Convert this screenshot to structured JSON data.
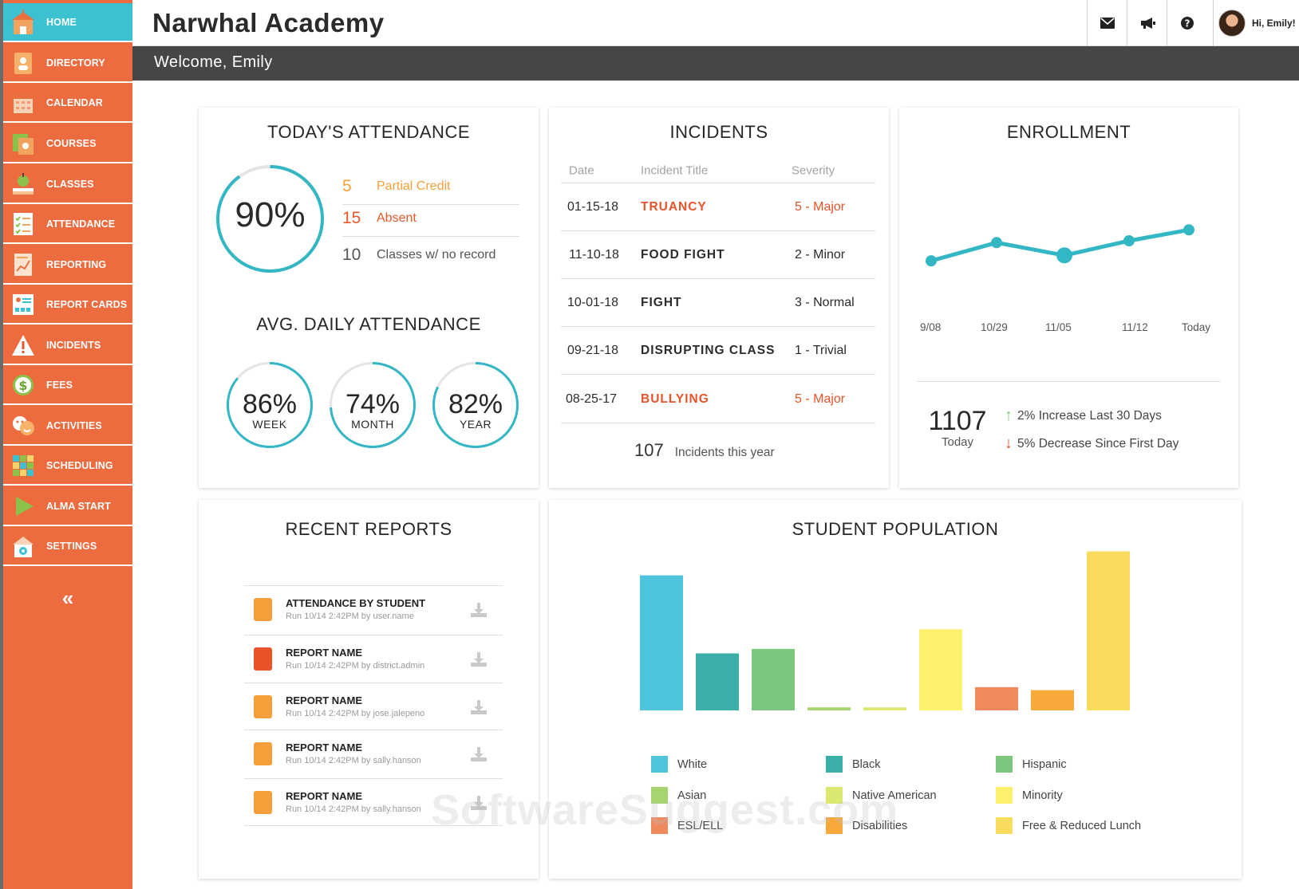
{
  "header": {
    "title": "Narwhal Academy",
    "greeting": "Hi, Emily!",
    "welcome": "Welcome, Emily",
    "icons": [
      "mail-icon",
      "megaphone-icon",
      "help-icon"
    ]
  },
  "sidebar": {
    "items": [
      {
        "label": "HOME",
        "icon": "school-house-icon",
        "active": true
      },
      {
        "label": "DIRECTORY",
        "icon": "directory-icon"
      },
      {
        "label": "CALENDAR",
        "icon": "calendar-icon"
      },
      {
        "label": "COURSES",
        "icon": "courses-icon"
      },
      {
        "label": "CLASSES",
        "icon": "apple-books-icon"
      },
      {
        "label": "ATTENDANCE",
        "icon": "checklist-icon"
      },
      {
        "label": "REPORTING",
        "icon": "report-chart-icon"
      },
      {
        "label": "REPORT CARDS",
        "icon": "report-card-icon"
      },
      {
        "label": "INCIDENTS",
        "icon": "warning-icon"
      },
      {
        "label": "FEES",
        "icon": "dollar-icon"
      },
      {
        "label": "ACTIVITIES",
        "icon": "theater-masks-icon"
      },
      {
        "label": "SCHEDULING",
        "icon": "schedule-grid-icon"
      },
      {
        "label": "ALMA START",
        "icon": "play-icon"
      },
      {
        "label": "SETTINGS",
        "icon": "settings-house-icon"
      }
    ],
    "collapse": "«"
  },
  "attendance": {
    "title": "TODAY'S ATTENDANCE",
    "today_pct": "90%",
    "today_fraction": 0.9,
    "rows": [
      {
        "num": "5",
        "label": "Partial Credit",
        "color": "#f5a03a"
      },
      {
        "num": "15",
        "label": "Absent",
        "color": "#e85a2a"
      },
      {
        "num": "10",
        "label": "Classes w/ no record",
        "color": "#555555"
      }
    ],
    "avg_title": "AVG. DAILY ATTENDANCE",
    "avg": [
      {
        "pct": "86%",
        "label": "WEEK",
        "fraction": 0.86
      },
      {
        "pct": "74%",
        "label": "MONTH",
        "fraction": 0.74
      },
      {
        "pct": "82%",
        "label": "YEAR",
        "fraction": 0.82
      }
    ],
    "ring_color": "#34b7c4"
  },
  "incidents": {
    "title": "INCIDENTS",
    "columns": [
      "Date",
      "Incident Title",
      "Severity"
    ],
    "rows": [
      {
        "date": "01-15-18",
        "title": "TRUANCY",
        "severity": "5 - Major",
        "highlight": true
      },
      {
        "date": "11-10-18",
        "title": "FOOD FIGHT",
        "severity": "2 - Minor",
        "highlight": false
      },
      {
        "date": "10-01-18",
        "title": "FIGHT",
        "severity": "3 - Normal",
        "highlight": false
      },
      {
        "date": "09-21-18",
        "title": "DISRUPTING CLASS",
        "severity": "1 - Trivial",
        "highlight": false
      },
      {
        "date": "08-25-17",
        "title": "BULLYING",
        "severity": "5 - Major",
        "highlight": true
      }
    ],
    "total": "107",
    "total_label": "Incidents this year",
    "highlight_color": "#e8532a"
  },
  "enrollment": {
    "title": "ENROLLMENT",
    "count": "1107",
    "count_label": "Today",
    "increase": "2% Increase Last 30 Days",
    "decrease": "5% Decrease Since First Day"
  },
  "reports": {
    "title": "RECENT REPORTS",
    "items": [
      {
        "name": "ATTENDANCE BY STUDENT",
        "meta": "Run 10/14 2:42PM by user.name",
        "color": "#f5a03a"
      },
      {
        "name": "REPORT NAME",
        "meta": "Run 10/14 2:42PM by district.admin",
        "color": "#e8532a"
      },
      {
        "name": "REPORT NAME",
        "meta": "Run 10/14 2:42PM by jose.jalepeno",
        "color": "#f5a03a"
      },
      {
        "name": "REPORT NAME",
        "meta": "Run 10/14 2:42PM by sally.hanson",
        "color": "#f5a03a"
      },
      {
        "name": "REPORT NAME",
        "meta": "Run 10/14 2:42PM by sally.hanson",
        "color": "#f5a03a"
      }
    ]
  },
  "population": {
    "title": "STUDENT POPULATION",
    "legend": [
      {
        "label": "White",
        "color": "#4ec5db"
      },
      {
        "label": "Black",
        "color": "#3aafa9"
      },
      {
        "label": "Hispanic",
        "color": "#7dc67e"
      },
      {
        "label": "Asian",
        "color": "#a7d46f"
      },
      {
        "label": "Native American",
        "color": "#dbe870"
      },
      {
        "label": "Minority",
        "color": "#fdf06b"
      },
      {
        "label": "ESL/ELL",
        "color": "#f08a5d"
      },
      {
        "label": "Disabilities",
        "color": "#f8a93c"
      },
      {
        "label": "Free & Reduced Lunch",
        "color": "#f9dc5c"
      }
    ]
  },
  "watermark": "SoftwareSuggest.com",
  "chart_data": [
    {
      "type": "line",
      "title": "ENROLLMENT",
      "x": [
        "9/08",
        "10/29",
        "11/05",
        "11/12",
        "Today"
      ],
      "series": [
        {
          "values": [
            1090,
            1100,
            1093,
            1101,
            1107
          ]
        }
      ],
      "color": "#34b7c4",
      "ylim": [
        1080,
        1115
      ],
      "grid": false
    },
    {
      "type": "bar",
      "title": "STUDENT POPULATION",
      "categories": [
        "White",
        "Black",
        "Hispanic",
        "Asian",
        "Native American",
        "Minority",
        "ESL/ELL",
        "Disabilities",
        "Free & Reduced Lunch"
      ],
      "values": [
        180,
        76,
        82,
        4,
        4,
        108,
        31,
        27,
        212
      ],
      "colors": [
        "#4ec5db",
        "#3aafa9",
        "#7dc67e",
        "#a7d46f",
        "#dbe870",
        "#fdf06b",
        "#f08a5d",
        "#f8a93c",
        "#f9dc5c"
      ],
      "ylim": [
        0,
        220
      ],
      "grid": false,
      "legend": "bottom"
    }
  ]
}
